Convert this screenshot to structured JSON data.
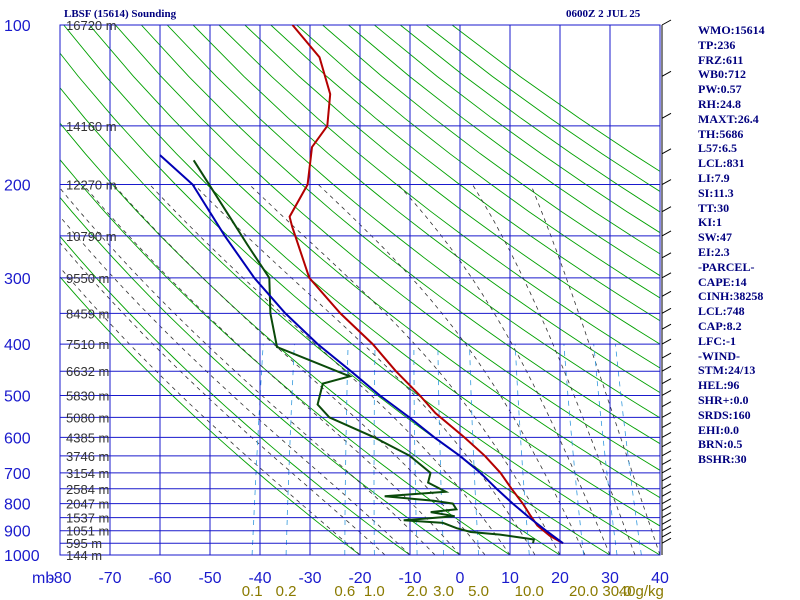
{
  "header": {
    "station": "LBSF (15614) Sounding",
    "time": "0600Z  2 JUL 25"
  },
  "indices": [
    "WMO:15614",
    "TP:236",
    "FRZ:611",
    "WB0:712",
    "PW:0.57",
    "RH:24.8",
    "MAXT:26.4",
    "TH:5686",
    "L57:6.5",
    "LCL:831",
    "LI:7.9",
    "SI:11.3",
    "TT:30",
    "KI:1",
    "SW:47",
    "EI:2.3",
    "-PARCEL-",
    "CAPE:14",
    "CINH:38258",
    "LCL:748",
    "CAP:8.2",
    "LFC:-1",
    "-WIND-",
    "STM:24/13",
    "HEL:96",
    "SHR+:0.0",
    "SRDS:160",
    "EHI:0.0",
    "BRN:0.5",
    "BSHR:30"
  ],
  "colors": {
    "grid": "#1a1acc",
    "temperature": "#b40000",
    "dewpoint": "#0a4a0a",
    "parcel": "#0000b4",
    "dry_adiabat": "#00a000",
    "moist_adiabat": "#333333",
    "mixing_ratio": "#3399dd",
    "text": "#00007f",
    "mixing_label": "#8a7a00"
  },
  "chart_data": {
    "type": "line",
    "title": "LBSF (15614) Sounding",
    "subtitle": "0600Z  2 JUL 25",
    "xlabel": "",
    "ylabel": "mb",
    "y_scale": "log",
    "pressure_ticks": [
      "100",
      "200",
      "300",
      "400",
      "500",
      "600",
      "700",
      "800",
      "900",
      "1000"
    ],
    "temperature_ticks": [
      "-80",
      "-70",
      "-60",
      "-50",
      "-40",
      "-30",
      "-20",
      "-10",
      "0",
      "10",
      "20",
      "30",
      "40"
    ],
    "mixing_ratio_ticks": [
      "0.1",
      "0.2",
      "0.6",
      "1.0",
      "2.0",
      "3.0",
      "5.0",
      "10.0",
      "20.0",
      "30.0",
      "40g/kg"
    ],
    "xlim": [
      -80,
      40
    ],
    "ylim": [
      1000,
      100
    ],
    "height_labels": [
      {
        "p": 100,
        "text": "16720 m"
      },
      {
        "p": 155,
        "text": "14160 m"
      },
      {
        "p": 200,
        "text": "12270 m"
      },
      {
        "p": 250,
        "text": "10790 m"
      },
      {
        "p": 300,
        "text": "9550 m"
      },
      {
        "p": 350,
        "text": "8459 m"
      },
      {
        "p": 400,
        "text": "7510 m"
      },
      {
        "p": 450,
        "text": "6632 m"
      },
      {
        "p": 500,
        "text": "5830 m"
      },
      {
        "p": 550,
        "text": "5080 m"
      },
      {
        "p": 600,
        "text": "4385 m"
      },
      {
        "p": 650,
        "text": "3746 m"
      },
      {
        "p": 700,
        "text": "3154 m"
      },
      {
        "p": 750,
        "text": "2584 m"
      },
      {
        "p": 800,
        "text": "2047 m"
      },
      {
        "p": 850,
        "text": "1537 m"
      },
      {
        "p": 900,
        "text": "1051 m"
      },
      {
        "p": 950,
        "text": "595 m"
      },
      {
        "p": 1000,
        "text": "144 m"
      }
    ],
    "series": [
      {
        "name": "",
        "role": "temperature",
        "points": [
          [
            100,
            -60
          ],
          [
            115,
            -53
          ],
          [
            135,
            -49
          ],
          [
            155,
            -48
          ],
          [
            170,
            -50
          ],
          [
            200,
            -49
          ],
          [
            230,
            -51
          ],
          [
            240,
            -50
          ],
          [
            300,
            -44
          ],
          [
            350,
            -36
          ],
          [
            400,
            -28
          ],
          [
            450,
            -22
          ],
          [
            500,
            -16
          ],
          [
            540,
            -12
          ],
          [
            600,
            -5
          ],
          [
            650,
            0
          ],
          [
            700,
            4
          ],
          [
            750,
            7
          ],
          [
            800,
            10
          ],
          [
            840,
            12
          ],
          [
            880,
            14
          ],
          [
            920,
            17
          ],
          [
            950,
            20
          ]
        ]
      },
      {
        "name": "",
        "role": "dewpoint",
        "points": [
          [
            180,
            -73
          ],
          [
            230,
            -63
          ],
          [
            260,
            -58
          ],
          [
            300,
            -52
          ],
          [
            350,
            -50
          ],
          [
            405,
            -47
          ],
          [
            460,
            -31
          ],
          [
            475,
            -36
          ],
          [
            520,
            -36
          ],
          [
            550,
            -33
          ],
          [
            600,
            -23
          ],
          [
            650,
            -15
          ],
          [
            700,
            -10
          ],
          [
            730,
            -10
          ],
          [
            760,
            -6
          ],
          [
            775,
            -18
          ],
          [
            790,
            -8
          ],
          [
            800,
            -4
          ],
          [
            820,
            -3
          ],
          [
            830,
            -8
          ],
          [
            845,
            -3
          ],
          [
            860,
            -13
          ],
          [
            870,
            -5
          ],
          [
            890,
            -2
          ],
          [
            905,
            1
          ],
          [
            915,
            7
          ],
          [
            935,
            14
          ],
          [
            950,
            14
          ]
        ]
      },
      {
        "name": "",
        "role": "parcel",
        "points": [
          [
            176,
            -80
          ],
          [
            200,
            -72
          ],
          [
            250,
            -63
          ],
          [
            300,
            -55
          ],
          [
            350,
            -47
          ],
          [
            400,
            -39
          ],
          [
            450,
            -31
          ],
          [
            500,
            -24
          ],
          [
            550,
            -17
          ],
          [
            600,
            -11
          ],
          [
            650,
            -5
          ],
          [
            700,
            0
          ],
          [
            750,
            4
          ],
          [
            800,
            8
          ],
          [
            850,
            12
          ],
          [
            900,
            16
          ],
          [
            950,
            20
          ]
        ]
      }
    ]
  }
}
